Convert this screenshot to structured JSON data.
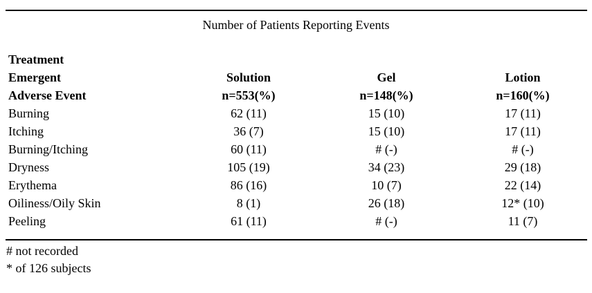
{
  "title": "Number of Patients Reporting Events",
  "colors": {
    "text": "#000000",
    "background": "#ffffff",
    "rule": "#000000"
  },
  "table": {
    "row_header_lines": [
      "Treatment",
      "Emergent",
      "Adverse Event"
    ],
    "columns": [
      {
        "name": "Solution",
        "n": "n=553(%)"
      },
      {
        "name": "Gel",
        "n": "n=148(%)"
      },
      {
        "name": "Lotion",
        "n": "n=160(%)"
      }
    ],
    "rows": [
      {
        "event": "Burning",
        "solution": "62 (11)",
        "gel": "15 (10)",
        "lotion": "17 (11)"
      },
      {
        "event": "Itching",
        "solution": "36 (7)",
        "gel": "15 (10)",
        "lotion": "17 (11)"
      },
      {
        "event": "Burning/Itching",
        "solution": "60 (11)",
        "gel": "# (-)",
        "lotion": "# (-)"
      },
      {
        "event": "Dryness",
        "solution": "105 (19)",
        "gel": "34 (23)",
        "lotion": "29 (18)"
      },
      {
        "event": "Erythema",
        "solution": "86 (16)",
        "gel": "10 (7)",
        "lotion": "22 (14)"
      },
      {
        "event": "Oiliness/Oily Skin",
        "solution": "8 (1)",
        "gel": "26 (18)",
        "lotion": "12* (10)"
      },
      {
        "event": "Peeling",
        "solution": "61 (11)",
        "gel": "# (-)",
        "lotion": "11 (7)"
      }
    ]
  },
  "footnotes": [
    "# not recorded",
    "* of 126 subjects"
  ]
}
